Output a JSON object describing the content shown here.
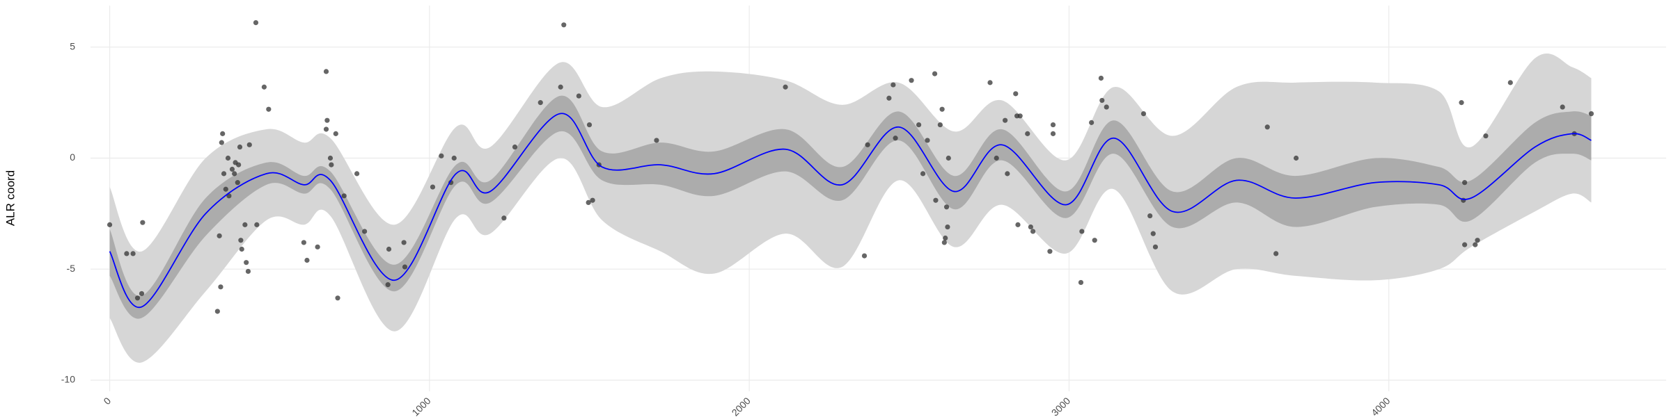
{
  "chart_data": {
    "type": "line",
    "y_label": "ALR coord",
    "x": [
      0,
      100,
      300,
      490,
      607,
      690,
      890,
      1083,
      1190,
      1407,
      1540,
      1723,
      1890,
      2113,
      2290,
      2467,
      2640,
      2790,
      2990,
      3140,
      3323,
      3523,
      3707,
      3957,
      4157,
      4257,
      4457,
      4573,
      4633
    ],
    "values": [
      -4.2,
      -6.7,
      -2.5,
      -0.7,
      -1.2,
      -1.0,
      -5.5,
      -0.7,
      -1.5,
      2.0,
      -0.4,
      -0.3,
      -0.7,
      0.4,
      -1.2,
      1.4,
      -1.5,
      0.6,
      -2.1,
      0.9,
      -2.4,
      -1.0,
      -1.8,
      -1.1,
      -1.2,
      -1.8,
      0.5,
      1.1,
      0.8
    ],
    "color": "#0000ff",
    "bands": [
      {
        "color": "#d6d6d6",
        "lower": [
          -7.2,
          -9.2,
          -6.0,
          -2.8,
          -3.0,
          -2.6,
          -7.8,
          -2.7,
          -3.4,
          0.0,
          -2.8,
          -4.2,
          -5.2,
          -3.4,
          -4.9,
          -1.0,
          -4.0,
          -2.1,
          -4.3,
          -1.4,
          -6.0,
          -5.0,
          -5.3,
          -5.5,
          -5.0,
          -4.0,
          -2.4,
          -1.6,
          -2.0
        ],
        "upper": [
          -1.3,
          -4.2,
          0.0,
          1.3,
          0.7,
          0.9,
          -3.0,
          1.4,
          0.5,
          4.3,
          2.3,
          3.6,
          3.9,
          3.5,
          2.4,
          3.4,
          1.2,
          2.6,
          -0.1,
          3.2,
          1.0,
          3.2,
          3.4,
          3.4,
          3.0,
          0.5,
          4.5,
          4.1,
          3.6
        ]
      },
      {
        "color": "#acacac",
        "lower": [
          -5.3,
          -7.2,
          -3.5,
          -1.2,
          -1.6,
          -1.4,
          -6.0,
          -1.2,
          -2.0,
          1.2,
          -1.0,
          -1.2,
          -1.7,
          -0.6,
          -1.9,
          0.8,
          -2.3,
          -0.1,
          -2.7,
          0.2,
          -3.1,
          -2.0,
          -3.1,
          -2.2,
          -2.1,
          -2.8,
          -0.2,
          0.2,
          -0.1
        ],
        "upper": [
          -3.2,
          -6.2,
          -1.8,
          -0.2,
          -0.8,
          -0.6,
          -4.8,
          -0.3,
          -1.0,
          2.8,
          0.3,
          0.7,
          0.3,
          1.3,
          -0.4,
          2.1,
          -0.8,
          1.3,
          -1.5,
          1.7,
          -1.5,
          0.0,
          -0.8,
          0.0,
          -0.4,
          -1.0,
          1.6,
          2.1,
          1.9
        ]
      }
    ],
    "points": {
      "color": "#333333",
      "x": [
        0,
        53,
        73,
        87,
        100,
        103,
        337,
        347,
        343,
        350,
        353,
        357,
        363,
        370,
        373,
        383,
        390,
        393,
        400,
        403,
        407,
        410,
        413,
        423,
        427,
        433,
        437,
        457,
        460,
        483,
        497,
        607,
        617,
        650,
        677,
        680,
        677,
        690,
        693,
        707,
        713,
        733,
        773,
        797,
        870,
        873,
        920,
        923,
        1010,
        1037,
        1067,
        1077,
        1233,
        1267,
        1347,
        1410,
        1420,
        1467,
        1500,
        1497,
        1510,
        1530,
        1710,
        2113,
        2360,
        2370,
        2437,
        2450,
        2457,
        2507,
        2530,
        2543,
        2557,
        2580,
        2583,
        2597,
        2603,
        2610,
        2613,
        2617,
        2620,
        2623,
        2753,
        2773,
        2800,
        2807,
        2833,
        2837,
        2847,
        2840,
        2870,
        2880,
        2887,
        2940,
        2950,
        2950,
        3037,
        3040,
        3070,
        3080,
        3100,
        3103,
        3117,
        3233,
        3253,
        3263,
        3270,
        3620,
        3647,
        3710,
        4227,
        4237,
        4233,
        4237,
        4270,
        4277,
        4303,
        4380,
        4543,
        4580,
        4633
      ],
      "y": [
        -3.0,
        -4.3,
        -4.3,
        -6.3,
        -6.1,
        -2.9,
        -6.9,
        -5.8,
        -3.5,
        0.7,
        1.1,
        -0.7,
        -1.4,
        0,
        -1.7,
        -0.5,
        -0.7,
        -0.2,
        -1.1,
        -0.3,
        0.5,
        -3.7,
        -4.1,
        -3.0,
        -4.7,
        -5.1,
        0.6,
        6.1,
        -3.0,
        3.2,
        2.2,
        -3.8,
        -4.6,
        -4.0,
        3.9,
        1.7,
        1.3,
        0,
        -0.3,
        1.1,
        -6.3,
        -1.7,
        -0.7,
        -3.3,
        -5.7,
        -4.1,
        -3.8,
        -4.9,
        -1.3,
        0.1,
        -1.1,
        0,
        -2.7,
        0.5,
        2.5,
        3.2,
        6.0,
        2.8,
        1.5,
        -2.0,
        -1.9,
        -0.3,
        0.8,
        3.2,
        -4.4,
        0.6,
        2.7,
        3.3,
        0.9,
        3.5,
        1.5,
        -0.7,
        0.8,
        3.8,
        -1.9,
        1.5,
        2.2,
        -3.8,
        -3.6,
        -2.2,
        -3.1,
        0,
        3.4,
        0,
        1.7,
        -0.7,
        2.9,
        1.9,
        1.9,
        -3.0,
        1.1,
        -3.1,
        -3.3,
        -4.2,
        1.1,
        1.5,
        -5.6,
        -3.3,
        1.6,
        -3.7,
        3.6,
        2.6,
        2.3,
        2.0,
        -2.6,
        -3.4,
        -4.0,
        1.4,
        -4.3,
        0,
        2.5,
        -1.1,
        -1.9,
        -3.9,
        -3.9,
        -3.7,
        1.0,
        3.4,
        2.3,
        1.1,
        2.0
      ]
    },
    "xlim": [
      -60,
      4867
    ],
    "ylim": [
      -10.5,
      6.87
    ],
    "xticks": [
      0,
      1000,
      2000,
      3000,
      4000
    ],
    "yticks": [
      -10,
      -5,
      0,
      5
    ],
    "grid": true
  }
}
